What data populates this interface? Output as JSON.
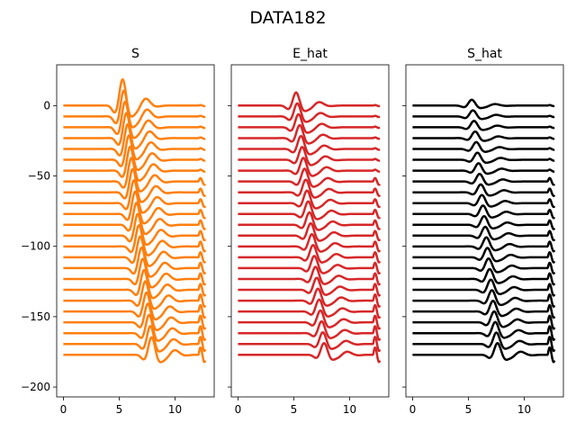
{
  "figure": {
    "title": "DATA182"
  },
  "chart_data": [
    {
      "type": "line",
      "title": "S",
      "color": "#ff7f0e",
      "xlim": [
        -0.6,
        13.5
      ],
      "ylim": [
        -207,
        29
      ],
      "xticks": [
        0,
        5,
        10
      ],
      "yticks": [
        0,
        -50,
        -100,
        -150,
        -200
      ],
      "show_yticklabels": true,
      "trace_count": 24,
      "trace_spacing": 7.7,
      "trace_x_range": [
        0,
        12.7
      ],
      "arrival_time": {
        "first": 5.3,
        "last": 7.9
      },
      "amplitude": {
        "first": 18,
        "last": 12
      },
      "line_width": 2.5
    },
    {
      "type": "line",
      "title": "E_hat",
      "color": "#d62728",
      "xlim": [
        -0.6,
        13.5
      ],
      "ylim": [
        -207,
        29
      ],
      "xticks": [
        0,
        5,
        10
      ],
      "yticks": [
        0,
        -50,
        -100,
        -150,
        -200
      ],
      "show_yticklabels": false,
      "trace_count": 24,
      "trace_spacing": 7.7,
      "trace_x_range": [
        0,
        12.7
      ],
      "arrival_time": {
        "first": 5.2,
        "last": 7.7
      },
      "amplitude": {
        "first": 9,
        "last": 8
      },
      "line_width": 2.5
    },
    {
      "type": "line",
      "title": "S_hat",
      "color": "#000000",
      "xlim": [
        -0.6,
        13.5
      ],
      "ylim": [
        -207,
        29
      ],
      "xticks": [
        0,
        5,
        10
      ],
      "yticks": [
        0,
        -50,
        -100,
        -150,
        -200
      ],
      "show_yticklabels": false,
      "trace_count": 24,
      "trace_spacing": 7.7,
      "trace_x_range": [
        0,
        12.7
      ],
      "arrival_time": {
        "first": 5.3,
        "last": 7.6
      },
      "amplitude": {
        "first": 4,
        "last": 8
      },
      "line_width": 2.5
    }
  ]
}
